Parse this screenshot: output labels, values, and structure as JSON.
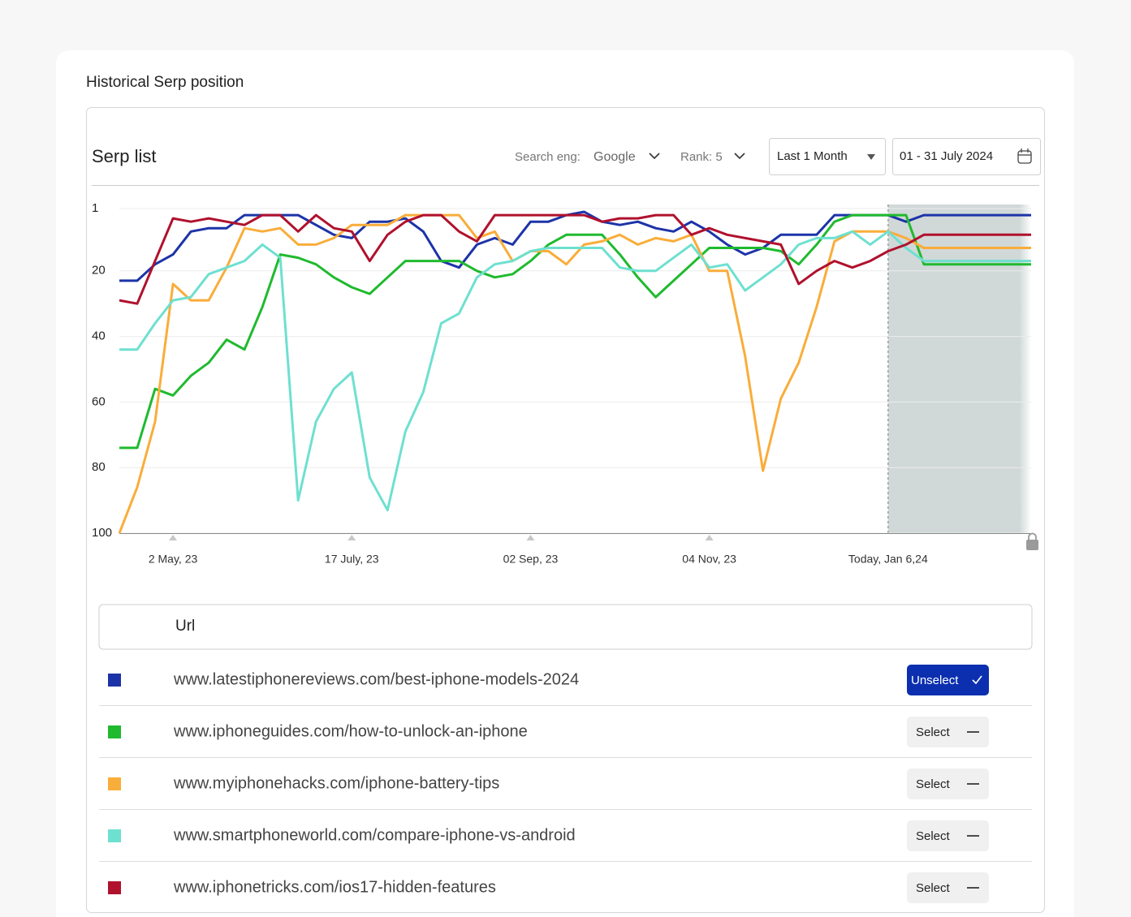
{
  "header": {
    "title": "Historical Serp position"
  },
  "toolbar": {
    "title": "Serp list",
    "engine_label": "Search eng:",
    "engine": "Google",
    "rank": "Rank: 5",
    "period": "Last 1 Month",
    "date_range": "01 - 31 July 2024"
  },
  "chart_data": {
    "type": "line",
    "categories": [
      null,
      null,
      null,
      "2 May, 23",
      null,
      null,
      null,
      null,
      null,
      null,
      null,
      null,
      null,
      "17 July, 23",
      null,
      null,
      null,
      null,
      null,
      null,
      null,
      null,
      null,
      "02 Sep, 23",
      null,
      null,
      null,
      null,
      null,
      null,
      null,
      null,
      null,
      "04 Nov, 23",
      null,
      null,
      null,
      null,
      null,
      null,
      null,
      null,
      null,
      "Today, Jan 6,24",
      null,
      null,
      null,
      null,
      null,
      null,
      null,
      null
    ],
    "ylim": [
      1,
      100
    ],
    "y_inverted": true,
    "yticks": [
      1,
      20,
      40,
      60,
      80,
      100
    ],
    "grid": true,
    "series": [
      {
        "name": "www.latestiphonereviews.com/best-iphone-models-2024",
        "color": "#1c33a8",
        "values": [
          23,
          23,
          18,
          15,
          8,
          7,
          7,
          3,
          3,
          3,
          3,
          6,
          9,
          10,
          5,
          5,
          4,
          8,
          17,
          19,
          12,
          10,
          12,
          5,
          5,
          3,
          2,
          5,
          6,
          5,
          7,
          8,
          5,
          8,
          12,
          15,
          13,
          9,
          9,
          9,
          3,
          3,
          3,
          3,
          5,
          3,
          3,
          3,
          3,
          3,
          3,
          3
        ]
      },
      {
        "name": "www.iphoneguides.com/how-to-unlock-an-iphone",
        "color": "#1fba2e",
        "values": [
          74,
          74,
          56,
          58,
          52,
          48,
          41,
          44,
          31,
          15,
          16,
          18,
          22,
          25,
          27,
          22,
          17,
          17,
          17,
          17,
          20,
          22,
          21,
          17,
          12,
          9,
          9,
          9,
          15,
          22,
          28,
          23,
          18,
          13,
          13,
          13,
          13,
          14,
          18,
          12,
          5,
          3,
          3,
          3,
          3,
          18,
          18,
          18,
          18,
          18,
          18,
          18
        ]
      },
      {
        "name": "www.myiphonehacks.com/iphone-battery-tips",
        "color": "#f9ad3a",
        "values": [
          100,
          86,
          66,
          24,
          29,
          29,
          19,
          7,
          8,
          7,
          12,
          12,
          10,
          6,
          6,
          6,
          3,
          3,
          3,
          3,
          10,
          8,
          17,
          14,
          14,
          18,
          12,
          11,
          9,
          12,
          10,
          11,
          9,
          20,
          20,
          46,
          81,
          59,
          48,
          31,
          11,
          8,
          8,
          8,
          10,
          13,
          13,
          13,
          13,
          13,
          13,
          13
        ]
      },
      {
        "name": "www.smartphoneworld.com/compare-iphone-vs-android",
        "color": "#6ee0d0",
        "values": [
          44,
          44,
          36,
          29,
          28,
          21,
          19,
          17,
          12,
          16,
          90,
          66,
          56,
          51,
          83,
          93,
          69,
          57,
          36,
          33,
          22,
          18,
          17,
          14,
          13,
          13,
          13,
          13,
          19,
          20,
          20,
          16,
          12,
          19,
          18,
          26,
          22,
          18,
          12,
          10,
          10,
          8,
          12,
          8,
          13,
          17,
          17,
          17,
          17,
          17,
          17,
          17
        ]
      },
      {
        "name": "www.iphonetricks.com/ios17-hidden-features",
        "color": "#b0112d",
        "values": [
          29,
          30,
          17,
          4,
          5,
          4,
          5,
          6,
          3,
          3,
          8,
          3,
          7,
          8,
          17,
          9,
          5,
          3,
          3,
          8,
          11,
          3,
          3,
          3,
          3,
          3,
          3,
          5,
          4,
          4,
          3,
          3,
          9,
          7,
          9,
          10,
          11,
          12,
          24,
          20,
          17,
          19,
          17,
          14,
          12,
          9,
          9,
          9,
          9,
          9,
          9,
          9
        ]
      }
    ]
  },
  "table": {
    "header": "Url",
    "actions": [
      "Unselect",
      "Select",
      "Select",
      "Select",
      "Select"
    ]
  }
}
